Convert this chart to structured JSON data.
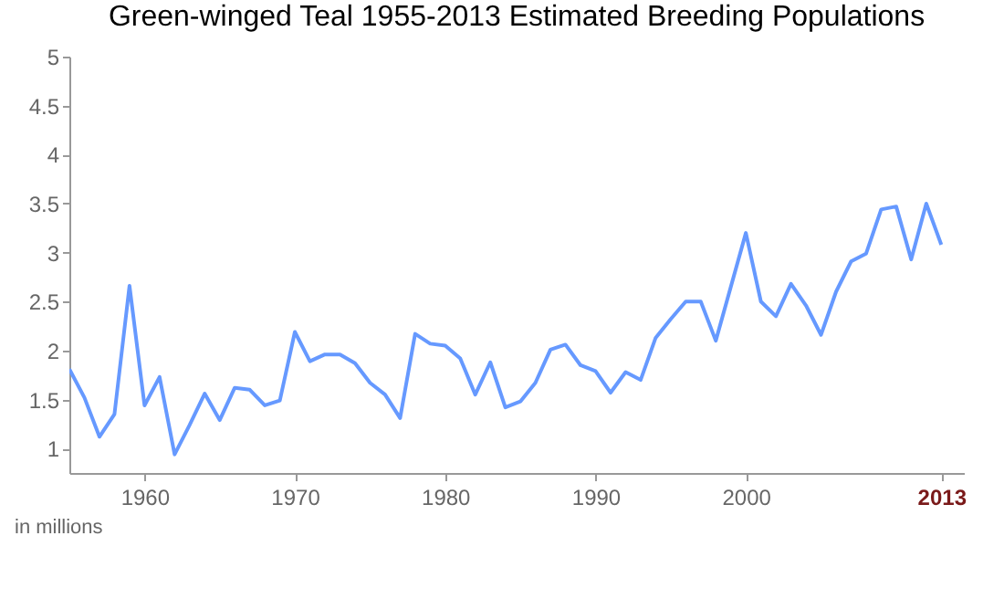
{
  "chart_data": {
    "type": "line",
    "title": "Green-winged Teal 1955-2013 Estimated Breeding Populations",
    "x": [
      1955,
      1956,
      1957,
      1958,
      1959,
      1960,
      1961,
      1962,
      1963,
      1964,
      1965,
      1966,
      1967,
      1968,
      1969,
      1970,
      1971,
      1972,
      1973,
      1974,
      1975,
      1976,
      1977,
      1978,
      1979,
      1980,
      1981,
      1982,
      1983,
      1984,
      1985,
      1986,
      1987,
      1988,
      1989,
      1990,
      1991,
      1992,
      1993,
      1994,
      1995,
      1996,
      1997,
      1998,
      1999,
      2000,
      2001,
      2002,
      2003,
      2004,
      2005,
      2006,
      2007,
      2008,
      2009,
      2010,
      2011,
      2012,
      2013
    ],
    "series": [
      {
        "color": "#6699ff",
        "values": [
          1.81,
          1.52,
          1.12,
          1.35,
          2.66,
          1.44,
          1.73,
          0.94,
          1.24,
          1.56,
          1.29,
          1.62,
          1.6,
          1.44,
          1.49,
          2.19,
          1.89,
          1.96,
          1.96,
          1.87,
          1.67,
          1.55,
          1.31,
          2.17,
          2.07,
          2.05,
          1.92,
          1.55,
          1.88,
          1.42,
          1.48,
          1.67,
          2.01,
          2.06,
          1.85,
          1.79,
          1.57,
          1.78,
          1.7,
          2.13,
          2.32,
          2.5,
          2.5,
          2.1,
          2.65,
          3.2,
          2.5,
          2.35,
          2.68,
          2.46,
          2.16,
          2.6,
          2.91,
          2.99,
          3.44,
          3.47,
          2.93,
          3.5,
          3.08
        ]
      }
    ],
    "xlim": [
      1955,
      2014.5
    ],
    "xticks": [
      1960,
      1970,
      1980,
      1990,
      2000,
      2013
    ],
    "ylim": [
      0.75,
      5
    ],
    "yticks": [
      1,
      1.5,
      2,
      2.5,
      3,
      3.5,
      4,
      4.5,
      5
    ],
    "grid": false,
    "marker": "none",
    "line_style": "solid",
    "annotations": [
      "in millions"
    ]
  }
}
